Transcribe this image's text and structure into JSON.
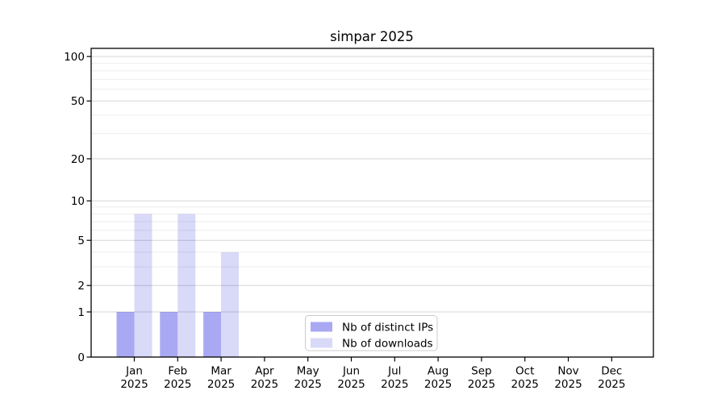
{
  "figure": {
    "background": "#ffffff",
    "text_color": "#000000"
  },
  "chart_data": {
    "type": "bar",
    "title": "simpar 2025",
    "categories": [
      "Jan 2025",
      "Feb 2025",
      "Mar 2025",
      "Apr 2025",
      "May 2025",
      "Jun 2025",
      "Jul 2025",
      "Aug 2025",
      "Sep 2025",
      "Oct 2025",
      "Nov 2025",
      "Dec 2025"
    ],
    "series": [
      {
        "name": "Nb of distinct IPs",
        "color": "#a9a9f3",
        "values": [
          1,
          1,
          1,
          0,
          0,
          0,
          0,
          0,
          0,
          0,
          0,
          0
        ]
      },
      {
        "name": "Nb of downloads",
        "color": "#d9d9f8",
        "values": [
          8,
          8,
          4,
          0,
          0,
          0,
          0,
          0,
          0,
          0,
          0,
          0
        ]
      }
    ],
    "y_axis": {
      "scale": "log10(1+x)",
      "tick_values": [
        0,
        1,
        2,
        5,
        10,
        20,
        50,
        100
      ],
      "minor_gridline_values": [
        3,
        4,
        6,
        7,
        8,
        9,
        30,
        40,
        60,
        70,
        80,
        90
      ],
      "top_value": 113
    },
    "x_axis": {
      "tick_label_months": [
        "Jan",
        "Feb",
        "Mar",
        "Apr",
        "May",
        "Jun",
        "Jul",
        "Aug",
        "Sep",
        "Oct",
        "Nov",
        "Dec"
      ],
      "tick_label_year": "2025"
    },
    "grid": {
      "orientation": "horizontal",
      "major_color": "rgba(0,0,0,0.16)",
      "minor_color": "rgba(0,0,0,0.065)"
    },
    "legend": {
      "position": "inside-bottom-center",
      "background": "#ffffff",
      "border_color": "#cccccc"
    },
    "axis_color": "#000000"
  }
}
